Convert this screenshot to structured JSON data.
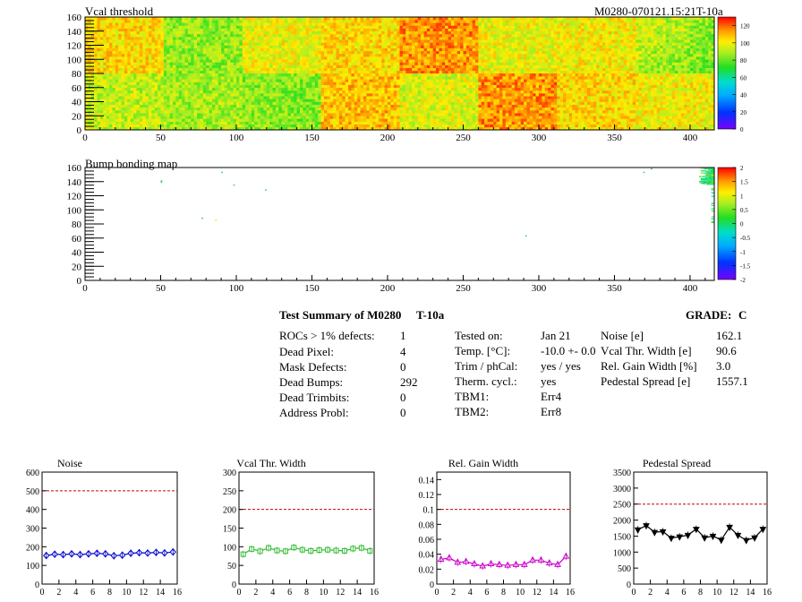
{
  "header": {
    "title_left": "Vcal threshold",
    "title_right": "M0280-070121.15:21T-10a"
  },
  "maps": [
    {
      "title": "Vcal threshold",
      "x_range": [
        0,
        416
      ],
      "y_range": [
        0,
        160
      ],
      "x_ticks": [
        "0",
        "50",
        "100",
        "150",
        "200",
        "250",
        "300",
        "350",
        "400"
      ],
      "y_ticks": [
        "0",
        "20",
        "40",
        "60",
        "80",
        "100",
        "120",
        "140",
        "160"
      ],
      "z_range": [
        0,
        130
      ],
      "z_ticks": [
        "0",
        "20",
        "40",
        "60",
        "80",
        "100",
        "120"
      ],
      "roc_levels_top": [
        104,
        86,
        98,
        104,
        114,
        98,
        100,
        90
      ],
      "roc_levels_bottom": [
        92,
        88,
        84,
        108,
        96,
        114,
        104,
        100
      ],
      "roc_right_gradient": "top-right ROC green at upper right corner"
    },
    {
      "title": "Bump bonding map",
      "x_range": [
        0,
        416
      ],
      "y_range": [
        0,
        160
      ],
      "x_ticks": [
        "0",
        "50",
        "100",
        "150",
        "200",
        "250",
        "300",
        "350",
        "400"
      ],
      "y_ticks": [
        "0",
        "20",
        "40",
        "60",
        "80",
        "100",
        "120",
        "140",
        "160"
      ],
      "z_range": [
        -2,
        2
      ],
      "z_ticks": [
        "-2",
        "-1.5",
        "-1",
        "-0.5",
        "0",
        "0.5",
        "1",
        "1.5",
        "2"
      ],
      "isolated_hits": [
        {
          "x": 50,
          "y": 139,
          "color": "#44cc66"
        },
        {
          "x": 50,
          "y": 141,
          "color": "#44cc66"
        },
        {
          "x": 90,
          "y": 153,
          "color": "#44cc66"
        },
        {
          "x": 98,
          "y": 135,
          "color": "#44cc66"
        },
        {
          "x": 119,
          "y": 128,
          "color": "#44cc66"
        },
        {
          "x": 77,
          "y": 88,
          "color": "#44cc66"
        },
        {
          "x": 86,
          "y": 85,
          "color": "#ccee44"
        },
        {
          "x": 291,
          "y": 63,
          "color": "#44cc66"
        },
        {
          "x": 369,
          "y": 153,
          "color": "#44cc66"
        },
        {
          "x": 374,
          "y": 158,
          "color": "#44cc66"
        }
      ]
    }
  ],
  "summary": {
    "title": "Test Summary of M0280",
    "title_suffix": "T-10a",
    "grade_label": "GRADE:",
    "grade": "C",
    "col1": [
      {
        "label": "ROCs > 1% defects:",
        "value": "1"
      },
      {
        "label": "Dead Pixel:",
        "value": "4"
      },
      {
        "label": "Mask Defects:",
        "value": "0"
      },
      {
        "label": "Dead Bumps:",
        "value": "292"
      },
      {
        "label": "Dead Trimbits:",
        "value": "0"
      },
      {
        "label": "Address Probl:",
        "value": "0"
      }
    ],
    "col2": [
      {
        "label": "Tested on:",
        "value": "Jan 21"
      },
      {
        "label": "Temp. [°C]:",
        "value": "-10.0 +- 0.0"
      },
      {
        "label": "Trim / phCal:",
        "value": "yes / yes"
      },
      {
        "label": "Therm. cycl.:",
        "value": "yes"
      },
      {
        "label": "TBM1:",
        "value": "Err4"
      },
      {
        "label": "TBM2:",
        "value": "Err8"
      }
    ],
    "col3": [
      {
        "label": "Noise [e]",
        "value": "162.1"
      },
      {
        "label": "Vcal Thr. Width [e]",
        "value": "90.6"
      },
      {
        "label": "Rel. Gain Width [%]",
        "value": "3.0"
      },
      {
        "label": "Pedestal Spread [e]",
        "value": "1557.1"
      }
    ]
  },
  "chart_data": [
    {
      "type": "line",
      "title": "Noise",
      "color": "#0000cc",
      "marker": "diamond",
      "x": [
        0,
        1,
        2,
        3,
        4,
        5,
        6,
        7,
        8,
        9,
        10,
        11,
        12,
        13,
        14,
        15
      ],
      "values": [
        153,
        160,
        158,
        162,
        158,
        162,
        165,
        162,
        152,
        155,
        165,
        168,
        166,
        170,
        167,
        172
      ],
      "xlim": [
        0,
        16
      ],
      "ylim": [
        0,
        600
      ],
      "x_ticks": [
        "0",
        "2",
        "4",
        "6",
        "8",
        "10",
        "12",
        "14",
        "16"
      ],
      "y_ticks": [
        "0",
        "100",
        "200",
        "300",
        "400",
        "500",
        "600"
      ],
      "threshold": 500
    },
    {
      "type": "line",
      "title": "Vcal Thr. Width",
      "color": "#33bb33",
      "marker": "square",
      "x": [
        0,
        1,
        2,
        3,
        4,
        5,
        6,
        7,
        8,
        9,
        10,
        11,
        12,
        13,
        14,
        15
      ],
      "values": [
        80,
        94,
        88,
        97,
        90,
        88,
        98,
        92,
        89,
        91,
        92,
        90,
        89,
        95,
        97,
        89
      ],
      "xlim": [
        0,
        16
      ],
      "ylim": [
        0,
        300
      ],
      "x_ticks": [
        "0",
        "2",
        "4",
        "6",
        "8",
        "10",
        "12",
        "14",
        "16"
      ],
      "y_ticks": [
        "0",
        "50",
        "100",
        "150",
        "200",
        "250",
        "300"
      ],
      "threshold": 200
    },
    {
      "type": "line",
      "title": "Rel. Gain Width",
      "color": "#cc00cc",
      "marker": "triangle",
      "x": [
        0,
        1,
        2,
        3,
        4,
        5,
        6,
        7,
        8,
        9,
        10,
        11,
        12,
        13,
        14,
        15
      ],
      "values": [
        0.033,
        0.035,
        0.029,
        0.03,
        0.027,
        0.024,
        0.027,
        0.026,
        0.025,
        0.026,
        0.026,
        0.032,
        0.032,
        0.028,
        0.026,
        0.037
      ],
      "xlim": [
        0,
        16
      ],
      "ylim": [
        0,
        0.15
      ],
      "x_ticks": [
        "0",
        "2",
        "4",
        "6",
        "8",
        "10",
        "12",
        "14",
        "16"
      ],
      "y_ticks": [
        "0",
        "0.02",
        "0.04",
        "0.06",
        "0.08",
        "0.1",
        "0.12",
        "0.14"
      ],
      "threshold": 0.1
    },
    {
      "type": "line",
      "title": "Pedestal Spread",
      "color": "#000000",
      "marker": "invtriangle",
      "x": [
        0,
        1,
        2,
        3,
        4,
        5,
        6,
        7,
        8,
        9,
        10,
        11,
        12,
        13,
        14,
        15
      ],
      "values": [
        1700,
        1830,
        1620,
        1640,
        1440,
        1480,
        1530,
        1720,
        1450,
        1500,
        1380,
        1780,
        1530,
        1370,
        1450,
        1720
      ],
      "xlim": [
        0,
        16
      ],
      "ylim": [
        0,
        3500
      ],
      "x_ticks": [
        "0",
        "2",
        "4",
        "6",
        "8",
        "10",
        "12",
        "14",
        "16"
      ],
      "y_ticks": [
        "0",
        "500",
        "1000",
        "1500",
        "2000",
        "2500",
        "3000",
        "3500"
      ],
      "threshold": 2500
    }
  ]
}
